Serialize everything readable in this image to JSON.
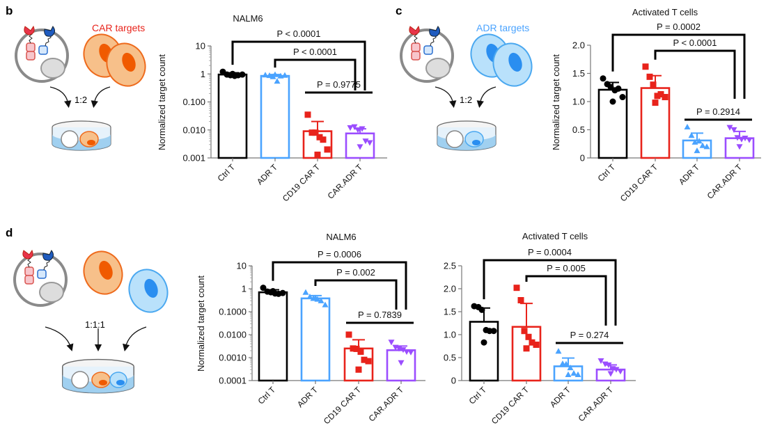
{
  "panels": {
    "b": {
      "letter": "b",
      "target_label": "CAR targets",
      "ratio": "1:2"
    },
    "c": {
      "letter": "c",
      "target_label": "ADR targets",
      "ratio": "1:2"
    },
    "d": {
      "letter": "d",
      "ratio": "1:1:1"
    }
  },
  "colors": {
    "ctrl": "#000000",
    "car": "#e8231b",
    "adr": "#4aa3ff",
    "caradr": "#9b4dff",
    "car_target_cell": "#f7c08a",
    "car_target_nucleus": "#f05a00",
    "adr_target_cell": "#b9e1fb",
    "adr_target_nucleus": "#2a8ef0"
  },
  "chart_data": [
    {
      "type": "bar",
      "panel": "b",
      "title": "NALM6",
      "ylabel": "Normalized target count",
      "yscale": "log",
      "ylim": [
        0.001,
        10
      ],
      "yticks": [
        10,
        1,
        0.1,
        0.01,
        0.001
      ],
      "yticklabels": [
        "10",
        "1",
        "0.100",
        "0.010",
        "0.001"
      ],
      "categories": [
        "Ctrl T",
        "ADR T",
        "CD19 CAR T",
        "CAR.ADR T"
      ],
      "colors": [
        "#000000",
        "#4aa3ff",
        "#e8231b",
        "#9b4dff"
      ],
      "markers": [
        "circle",
        "triangle-up",
        "square",
        "triangle-down"
      ],
      "means": [
        0.95,
        0.85,
        0.009,
        0.0075
      ],
      "error_upper": [
        1.1,
        0.95,
        0.02,
        0.011
      ],
      "points": [
        [
          1.2,
          0.95,
          0.9,
          0.85,
          0.9,
          0.95,
          1.0
        ],
        [
          0.92,
          0.88,
          0.8,
          0.55,
          0.85,
          0.9,
          0.95
        ],
        [
          0.035,
          0.008,
          0.008,
          0.0055,
          0.0045,
          0.002,
          0.0013
        ],
        [
          0.012,
          0.013,
          0.01,
          0.011,
          0.004,
          0.0035,
          0.0025
        ]
      ],
      "comparisons": [
        {
          "from": 0,
          "to": 3,
          "label": "P < 0.0001"
        },
        {
          "from": 1,
          "to": 3,
          "label": "P < 0.0001"
        },
        {
          "from": 2,
          "to": 3,
          "label": "P = 0.9775"
        }
      ]
    },
    {
      "type": "bar",
      "panel": "c",
      "title": "Activated T cells",
      "ylabel": "Normalized target count",
      "yscale": "linear",
      "ylim": [
        0,
        2.0
      ],
      "yticks": [
        2.0,
        1.5,
        1.0,
        0.5,
        0
      ],
      "yticklabels": [
        "2.0",
        "1.5",
        "1.0",
        "0.5",
        "0"
      ],
      "categories": [
        "Ctrl T",
        "CD19 CAR T",
        "ADR T",
        "CAR.ADR T"
      ],
      "colors": [
        "#000000",
        "#e8231b",
        "#4aa3ff",
        "#9b4dff"
      ],
      "markers": [
        "circle",
        "square",
        "triangle-up",
        "triangle-down"
      ],
      "means": [
        1.21,
        1.24,
        0.31,
        0.35
      ],
      "error_upper": [
        1.34,
        1.46,
        0.44,
        0.47
      ],
      "points": [
        [
          1.41,
          1.31,
          1.26,
          1.2,
          1.23,
          1.08,
          1.0
        ],
        [
          1.62,
          1.44,
          1.3,
          1.1,
          1.13,
          1.08,
          0.98
        ],
        [
          0.55,
          0.4,
          0.28,
          0.3,
          0.22,
          0.2,
          0.13
        ],
        [
          0.54,
          0.5,
          0.36,
          0.33,
          0.35,
          0.32,
          0.2
        ]
      ],
      "comparisons": [
        {
          "from": 0,
          "to": 3,
          "label": "P = 0.0002"
        },
        {
          "from": 1,
          "to": 3,
          "label": "P < 0.0001"
        },
        {
          "from": 2,
          "to": 3,
          "label": "P = 0.2914"
        }
      ]
    },
    {
      "type": "bar",
      "panel": "d",
      "title": "NALM6",
      "ylabel": "Normalized target count",
      "yscale": "log",
      "ylim": [
        0.0001,
        10
      ],
      "yticks": [
        10,
        1,
        0.1,
        0.01,
        0.001,
        0.0001
      ],
      "yticklabels": [
        "10",
        "1",
        "0.1000",
        "0.0100",
        "0.0010",
        "0.0001"
      ],
      "categories": [
        "Ctrl T",
        "ADR T",
        "CD19 CAR T",
        "CAR.ADR T"
      ],
      "colors": [
        "#000000",
        "#4aa3ff",
        "#e8231b",
        "#9b4dff"
      ],
      "markers": [
        "circle",
        "triangle-up",
        "square",
        "triangle-down"
      ],
      "means": [
        0.7,
        0.38,
        0.0025,
        0.0021
      ],
      "error_upper": [
        0.9,
        0.5,
        0.006,
        0.0032
      ],
      "points": [
        [
          1.1,
          0.75,
          0.7,
          0.62,
          0.6,
          0.65,
          0.78
        ],
        [
          0.7,
          0.45,
          0.38,
          0.35,
          0.3,
          0.2,
          0.4
        ],
        [
          0.01,
          0.0025,
          0.0024,
          0.0018,
          0.0008,
          0.0007,
          0.0003
        ],
        [
          0.0047,
          0.0028,
          0.0025,
          0.0022,
          0.0018,
          0.0017,
          0.0006
        ]
      ],
      "comparisons": [
        {
          "from": 0,
          "to": 3,
          "label": "P = 0.0006"
        },
        {
          "from": 1,
          "to": 3,
          "label": "P = 0.002"
        },
        {
          "from": 2,
          "to": 3,
          "label": "P = 0.7839"
        }
      ]
    },
    {
      "type": "bar",
      "panel": "d",
      "title": "Activated T cells",
      "yscale": "linear",
      "ylim": [
        0,
        2.5
      ],
      "yticks": [
        2.5,
        2.0,
        1.5,
        1.0,
        0.5,
        0
      ],
      "yticklabels": [
        "2.5",
        "2.0",
        "1.5",
        "1.0",
        "0.5",
        "0"
      ],
      "categories": [
        "Ctrl T",
        "CD19 CAR T",
        "ADR T",
        "CAR.ADR T"
      ],
      "colors": [
        "#000000",
        "#e8231b",
        "#4aa3ff",
        "#9b4dff"
      ],
      "markers": [
        "circle",
        "square",
        "triangle-up",
        "triangle-down"
      ],
      "means": [
        1.28,
        1.17,
        0.31,
        0.24
      ],
      "error_upper": [
        1.58,
        1.68,
        0.49,
        0.34
      ],
      "points": [
        [
          1.62,
          1.6,
          1.54,
          1.1,
          1.08,
          1.08,
          0.83
        ],
        [
          2.02,
          1.75,
          1.08,
          0.95,
          0.83,
          0.78,
          0.7
        ],
        [
          0.64,
          0.37,
          0.36,
          0.28,
          0.16,
          0.13,
          0.13
        ],
        [
          0.43,
          0.36,
          0.34,
          0.26,
          0.24,
          0.2,
          0.15
        ]
      ],
      "comparisons": [
        {
          "from": 0,
          "to": 3,
          "label": "P = 0.0004"
        },
        {
          "from": 1,
          "to": 3,
          "label": "P = 0.005"
        },
        {
          "from": 2,
          "to": 3,
          "label": "P = 0.274"
        }
      ]
    }
  ]
}
